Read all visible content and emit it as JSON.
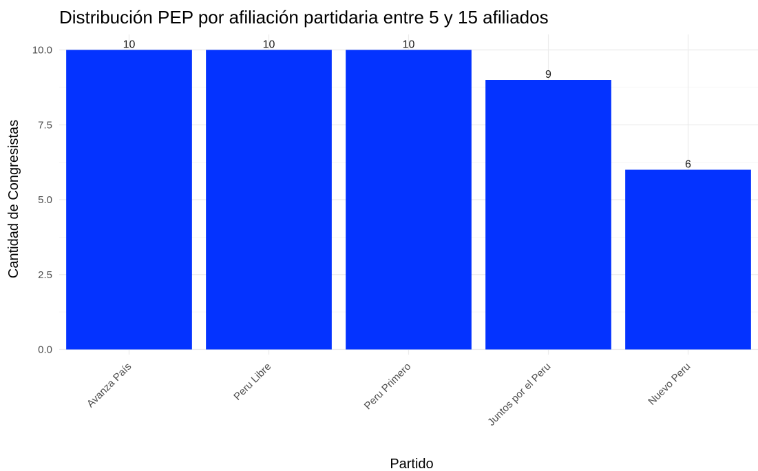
{
  "chart_data": {
    "type": "bar",
    "title": "Distribución PEP por afiliación partidaria entre 5 y 15 afiliados",
    "xlabel": "Partido",
    "ylabel": "Cantidad de Congresistas",
    "categories": [
      "Avanza País",
      "Peru Libre",
      "Peru Primero",
      "Juntos por el Peru",
      "Nuevo Peru"
    ],
    "values": [
      10,
      10,
      10,
      9,
      6
    ],
    "data_labels": [
      "10",
      "10",
      "10",
      "9",
      "6"
    ],
    "ylim": [
      0,
      10
    ],
    "y_ticks": [
      0,
      2.5,
      5,
      7.5,
      10
    ],
    "y_tick_labels": [
      "0.0",
      "2.5",
      "5.0",
      "7.5",
      "10.0"
    ],
    "grid": true,
    "bar_color": "#0433FF",
    "x_tick_rotation": "45 degrees"
  }
}
